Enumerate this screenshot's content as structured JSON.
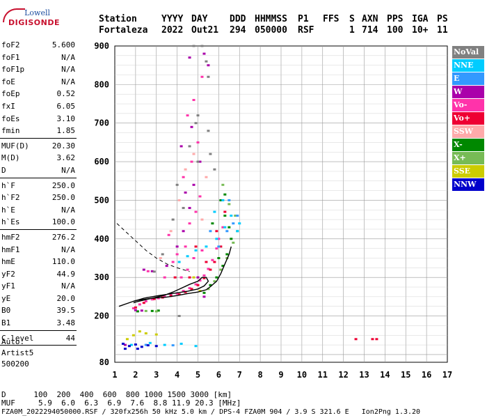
{
  "logo": {
    "top": "Lowell",
    "main": "DIGISONDE"
  },
  "header": {
    "labels": [
      "Station",
      "YYYY",
      "DAY",
      "DDD",
      "HHMMSS",
      "P1",
      "FFS",
      "S",
      "AXN",
      "PPS",
      "IGA",
      "PS"
    ],
    "values": [
      "Fortaleza",
      "2022",
      "Out21",
      "294",
      "050000",
      "RSF",
      "",
      "1",
      "714",
      "100",
      "10+",
      "11"
    ]
  },
  "params": [
    {
      "label": "foF2",
      "value": "5.600"
    },
    {
      "label": "foF1",
      "value": "N/A"
    },
    {
      "label": "foF1p",
      "value": "N/A"
    },
    {
      "label": "foE",
      "value": "N/A"
    },
    {
      "label": "foEp",
      "value": "0.52"
    },
    {
      "label": "fxI",
      "value": "6.05"
    },
    {
      "label": "foEs",
      "value": "3.10"
    },
    {
      "label": "fmin",
      "value": "1.85"
    },
    {
      "sep": true
    },
    {
      "label": "MUF(D)",
      "value": "20.30"
    },
    {
      "label": "M(D)",
      "value": "3.62"
    },
    {
      "label": "D",
      "value": "N/A"
    },
    {
      "sep": true
    },
    {
      "label": "h`F",
      "value": "250.0"
    },
    {
      "label": "h`F2",
      "value": "250.0"
    },
    {
      "label": "h`E",
      "value": "N/A"
    },
    {
      "label": "h`Es",
      "value": "100.0"
    },
    {
      "sep": true
    },
    {
      "label": "hmF2",
      "value": "276.2"
    },
    {
      "label": "hmF1",
      "value": "N/A"
    },
    {
      "label": "hmE",
      "value": "110.0"
    },
    {
      "label": "yF2",
      "value": "44.9"
    },
    {
      "label": "yF1",
      "value": "N/A"
    },
    {
      "label": "yE",
      "value": "20.0"
    },
    {
      "label": "B0",
      "value": "39.5"
    },
    {
      "label": "B1",
      "value": "3.48"
    },
    {
      "sep": true
    },
    {
      "label": "C-level",
      "value": "44"
    },
    {
      "sep": true
    }
  ],
  "auto": [
    "Auto:",
    "Artist5",
    "500200"
  ],
  "legend": [
    {
      "label": "NoVal",
      "color": "#808080"
    },
    {
      "label": "NNE",
      "color": "#00ccff"
    },
    {
      "label": "E",
      "color": "#3399ff"
    },
    {
      "label": "W",
      "color": "#aa00aa"
    },
    {
      "label": "Vo-",
      "color": "#ff33aa"
    },
    {
      "label": "Vo+",
      "color": "#ee0033"
    },
    {
      "label": "SSW",
      "color": "#ffaaaa"
    },
    {
      "label": "X-",
      "color": "#008800"
    },
    {
      "label": "X+",
      "color": "#77bb55"
    },
    {
      "label": "SSE",
      "color": "#cccc00"
    },
    {
      "label": "NNW",
      "color": "#0000cc"
    }
  ],
  "bottom": {
    "d_row": "D      100  200  400  600  800 1000 1500 3000 [km]",
    "muf_row": "MUF     5.9  6.0  6.3  6.9  7.6  8.8 11.9 20.3 [MHz]",
    "footer": "FZA0M_2022294050000.RSF / 320fx256h 50 kHz 5.0 km / DPS-4 FZA0M 904 / 3.9 S 321.6 E   Ion2Png 1.3.20"
  },
  "chart_data": {
    "type": "scatter",
    "title": "",
    "xlabel": "",
    "ylabel": "",
    "xlim": [
      1,
      17
    ],
    "ylim": [
      80,
      900
    ],
    "grid": true,
    "xticks": [
      1,
      2,
      3,
      4,
      5,
      6,
      7,
      8,
      9,
      10,
      11,
      12,
      13,
      14,
      15,
      16,
      17
    ],
    "yticks": [
      80,
      200,
      300,
      400,
      500,
      600,
      700,
      800,
      900
    ],
    "ytick_labels": [
      "80",
      "200",
      "300",
      "400",
      "500",
      "600",
      "700",
      "800",
      "900"
    ],
    "series": [
      {
        "name": "Vo-",
        "color": "#ff33aa",
        "points": [
          [
            1.9,
            220
          ],
          [
            2.2,
            230
          ],
          [
            2.5,
            238
          ],
          [
            2.8,
            243
          ],
          [
            3.1,
            246
          ],
          [
            3.4,
            250
          ],
          [
            3.7,
            254
          ],
          [
            4.0,
            258
          ],
          [
            4.3,
            265
          ],
          [
            4.6,
            272
          ],
          [
            4.9,
            282
          ],
          [
            5.1,
            292
          ],
          [
            5.3,
            305
          ],
          [
            5.5,
            322
          ],
          [
            5.7,
            345
          ],
          [
            5.9,
            375
          ],
          [
            6.0,
            400
          ],
          [
            6.2,
            430
          ],
          [
            4.2,
            300
          ],
          [
            4.5,
            320
          ],
          [
            4.0,
            360
          ],
          [
            4.4,
            380
          ],
          [
            4.8,
            350
          ],
          [
            5.2,
            370
          ],
          [
            3.8,
            340
          ],
          [
            4.6,
            440
          ],
          [
            4.9,
            470
          ],
          [
            5.1,
            510
          ],
          [
            4.3,
            560
          ],
          [
            4.7,
            600
          ],
          [
            5.0,
            650
          ],
          [
            4.5,
            720
          ],
          [
            4.8,
            760
          ],
          [
            5.2,
            820
          ],
          [
            3.6,
            410
          ],
          [
            3.4,
            300
          ],
          [
            2.6,
            316
          ]
        ]
      },
      {
        "name": "Vo+",
        "color": "#ee0033",
        "points": [
          [
            2.0,
            222
          ],
          [
            2.4,
            234
          ],
          [
            2.9,
            244
          ],
          [
            3.3,
            248
          ],
          [
            3.7,
            252
          ],
          [
            4.1,
            256
          ],
          [
            4.4,
            262
          ],
          [
            4.7,
            270
          ],
          [
            5.0,
            280
          ],
          [
            5.3,
            298
          ],
          [
            5.6,
            320
          ],
          [
            5.8,
            340
          ],
          [
            6.1,
            380
          ],
          [
            5.4,
            340
          ],
          [
            4.9,
            380
          ],
          [
            5.9,
            420
          ],
          [
            6.3,
            470
          ],
          [
            12.6,
            140
          ],
          [
            13.4,
            140
          ],
          [
            13.6,
            140
          ],
          [
            3.9,
            300
          ],
          [
            4.6,
            300
          ]
        ]
      },
      {
        "name": "X-",
        "color": "#008800",
        "points": [
          [
            5.3,
            260
          ],
          [
            5.6,
            280
          ],
          [
            5.9,
            300
          ],
          [
            6.2,
            330
          ],
          [
            6.4,
            360
          ],
          [
            6.6,
            400
          ],
          [
            6.5,
            430
          ],
          [
            6.3,
            460
          ],
          [
            6.1,
            500
          ],
          [
            5.7,
            440
          ],
          [
            6.0,
            350
          ],
          [
            2.1,
            212
          ],
          [
            2.8,
            213
          ],
          [
            3.1,
            214
          ],
          [
            6.3,
            515
          ]
        ]
      },
      {
        "name": "X+",
        "color": "#77bb55",
        "points": [
          [
            5.5,
            270
          ],
          [
            5.8,
            290
          ],
          [
            6.1,
            320
          ],
          [
            6.4,
            350
          ],
          [
            6.7,
            390
          ],
          [
            6.9,
            420
          ],
          [
            6.8,
            460
          ],
          [
            6.5,
            490
          ],
          [
            6.2,
            540
          ],
          [
            5.0,
            300
          ],
          [
            3.0,
            212
          ],
          [
            2.5,
            213
          ]
        ]
      },
      {
        "name": "NNE",
        "color": "#00ccff",
        "points": [
          [
            4.1,
            340
          ],
          [
            4.5,
            355
          ],
          [
            4.9,
            370
          ],
          [
            5.4,
            380
          ],
          [
            5.9,
            400
          ],
          [
            6.3,
            430
          ],
          [
            6.6,
            460
          ],
          [
            6.9,
            420
          ],
          [
            7.0,
            440
          ],
          [
            5.8,
            470
          ],
          [
            6.2,
            500
          ],
          [
            2.7,
            130
          ],
          [
            3.4,
            125
          ],
          [
            4.2,
            128
          ],
          [
            4.9,
            122
          ],
          [
            1.8,
            125
          ]
        ]
      },
      {
        "name": "E",
        "color": "#3399ff",
        "points": [
          [
            6.4,
            420
          ],
          [
            6.7,
            440
          ],
          [
            6.9,
            460
          ],
          [
            6.0,
            380
          ],
          [
            6.5,
            500
          ],
          [
            5.6,
            420
          ],
          [
            2.5,
            125
          ],
          [
            3.8,
            124
          ]
        ]
      },
      {
        "name": "W",
        "color": "#aa00aa",
        "points": [
          [
            2.4,
            320
          ],
          [
            2.8,
            316
          ],
          [
            3.5,
            330
          ],
          [
            4.0,
            380
          ],
          [
            4.3,
            420
          ],
          [
            4.6,
            480
          ],
          [
            4.4,
            520
          ],
          [
            4.8,
            540
          ],
          [
            5.1,
            600
          ],
          [
            4.2,
            640
          ],
          [
            4.7,
            690
          ],
          [
            5.0,
            300
          ],
          [
            5.3,
            250
          ],
          [
            2.0,
            215
          ],
          [
            2.3,
            214
          ],
          [
            4.6,
            870
          ],
          [
            5.3,
            880
          ],
          [
            5.5,
            850
          ],
          [
            1.5,
            125
          ]
        ]
      },
      {
        "name": "SSW",
        "color": "#ffaaaa",
        "points": [
          [
            3.7,
            420
          ],
          [
            4.1,
            500
          ],
          [
            4.4,
            580
          ],
          [
            4.8,
            620
          ],
          [
            5.4,
            560
          ],
          [
            5.2,
            450
          ],
          [
            3.2,
            350
          ]
        ]
      },
      {
        "name": "SSE",
        "color": "#cccc00",
        "points": [
          [
            1.9,
            150
          ],
          [
            2.2,
            160
          ],
          [
            2.5,
            155
          ],
          [
            3.0,
            152
          ],
          [
            1.6,
            140
          ],
          [
            4.8,
            300
          ],
          [
            5.1,
            265
          ]
        ]
      },
      {
        "name": "NNW",
        "color": "#0000cc",
        "points": [
          [
            1.4,
            128
          ],
          [
            1.7,
            122
          ],
          [
            2.0,
            126
          ],
          [
            2.3,
            120
          ],
          [
            2.6,
            124
          ],
          [
            3.0,
            122
          ],
          [
            1.5,
            115
          ],
          [
            2.1,
            115
          ]
        ]
      },
      {
        "name": "NoVal",
        "color": "#808080",
        "points": [
          [
            4.6,
            640
          ],
          [
            4.9,
            700
          ],
          [
            5.0,
            600
          ],
          [
            4.3,
            480
          ],
          [
            5.6,
            620
          ],
          [
            5.8,
            580
          ],
          [
            4.0,
            540
          ],
          [
            4.8,
            900
          ],
          [
            5.2,
            900
          ],
          [
            5.4,
            860
          ],
          [
            5.5,
            820
          ],
          [
            3.3,
            360
          ],
          [
            3.8,
            450
          ],
          [
            2.9,
            315
          ],
          [
            4.1,
            200
          ],
          [
            5.0,
            720
          ],
          [
            5.5,
            680
          ]
        ]
      }
    ],
    "profile_curve": [
      [
        1.9,
        238
      ],
      [
        2.4,
        246
      ],
      [
        3.0,
        252
      ],
      [
        3.5,
        256
      ],
      [
        4.0,
        260
      ],
      [
        4.5,
        264
      ],
      [
        5.0,
        270
      ],
      [
        5.3,
        278
      ],
      [
        5.5,
        290
      ],
      [
        5.4,
        300
      ],
      [
        5.2,
        300
      ],
      [
        5.0,
        290
      ],
      [
        4.6,
        282
      ],
      [
        4.2,
        272
      ],
      [
        3.8,
        262
      ],
      [
        3.4,
        254
      ],
      [
        2.8,
        246
      ],
      [
        2.3,
        240
      ],
      [
        2.0,
        236
      ],
      [
        1.9,
        234
      ]
    ],
    "virtual_height_curve": [
      [
        1.2,
        225
      ],
      [
        2.0,
        240
      ],
      [
        2.8,
        246
      ],
      [
        3.5,
        249
      ],
      [
        4.0,
        253
      ],
      [
        4.5,
        258
      ],
      [
        5.0,
        262
      ],
      [
        5.4,
        268
      ],
      [
        5.6,
        276
      ],
      [
        5.9,
        290
      ],
      [
        6.1,
        310
      ],
      [
        6.3,
        335
      ],
      [
        6.5,
        360
      ],
      [
        6.6,
        380
      ]
    ],
    "dashed_curve": [
      [
        1.1,
        440
      ],
      [
        1.5,
        420
      ],
      [
        2.0,
        395
      ],
      [
        2.5,
        370
      ],
      [
        3.0,
        350
      ],
      [
        3.5,
        335
      ],
      [
        4.0,
        325
      ],
      [
        4.3,
        320
      ],
      [
        4.6,
        315
      ]
    ]
  }
}
